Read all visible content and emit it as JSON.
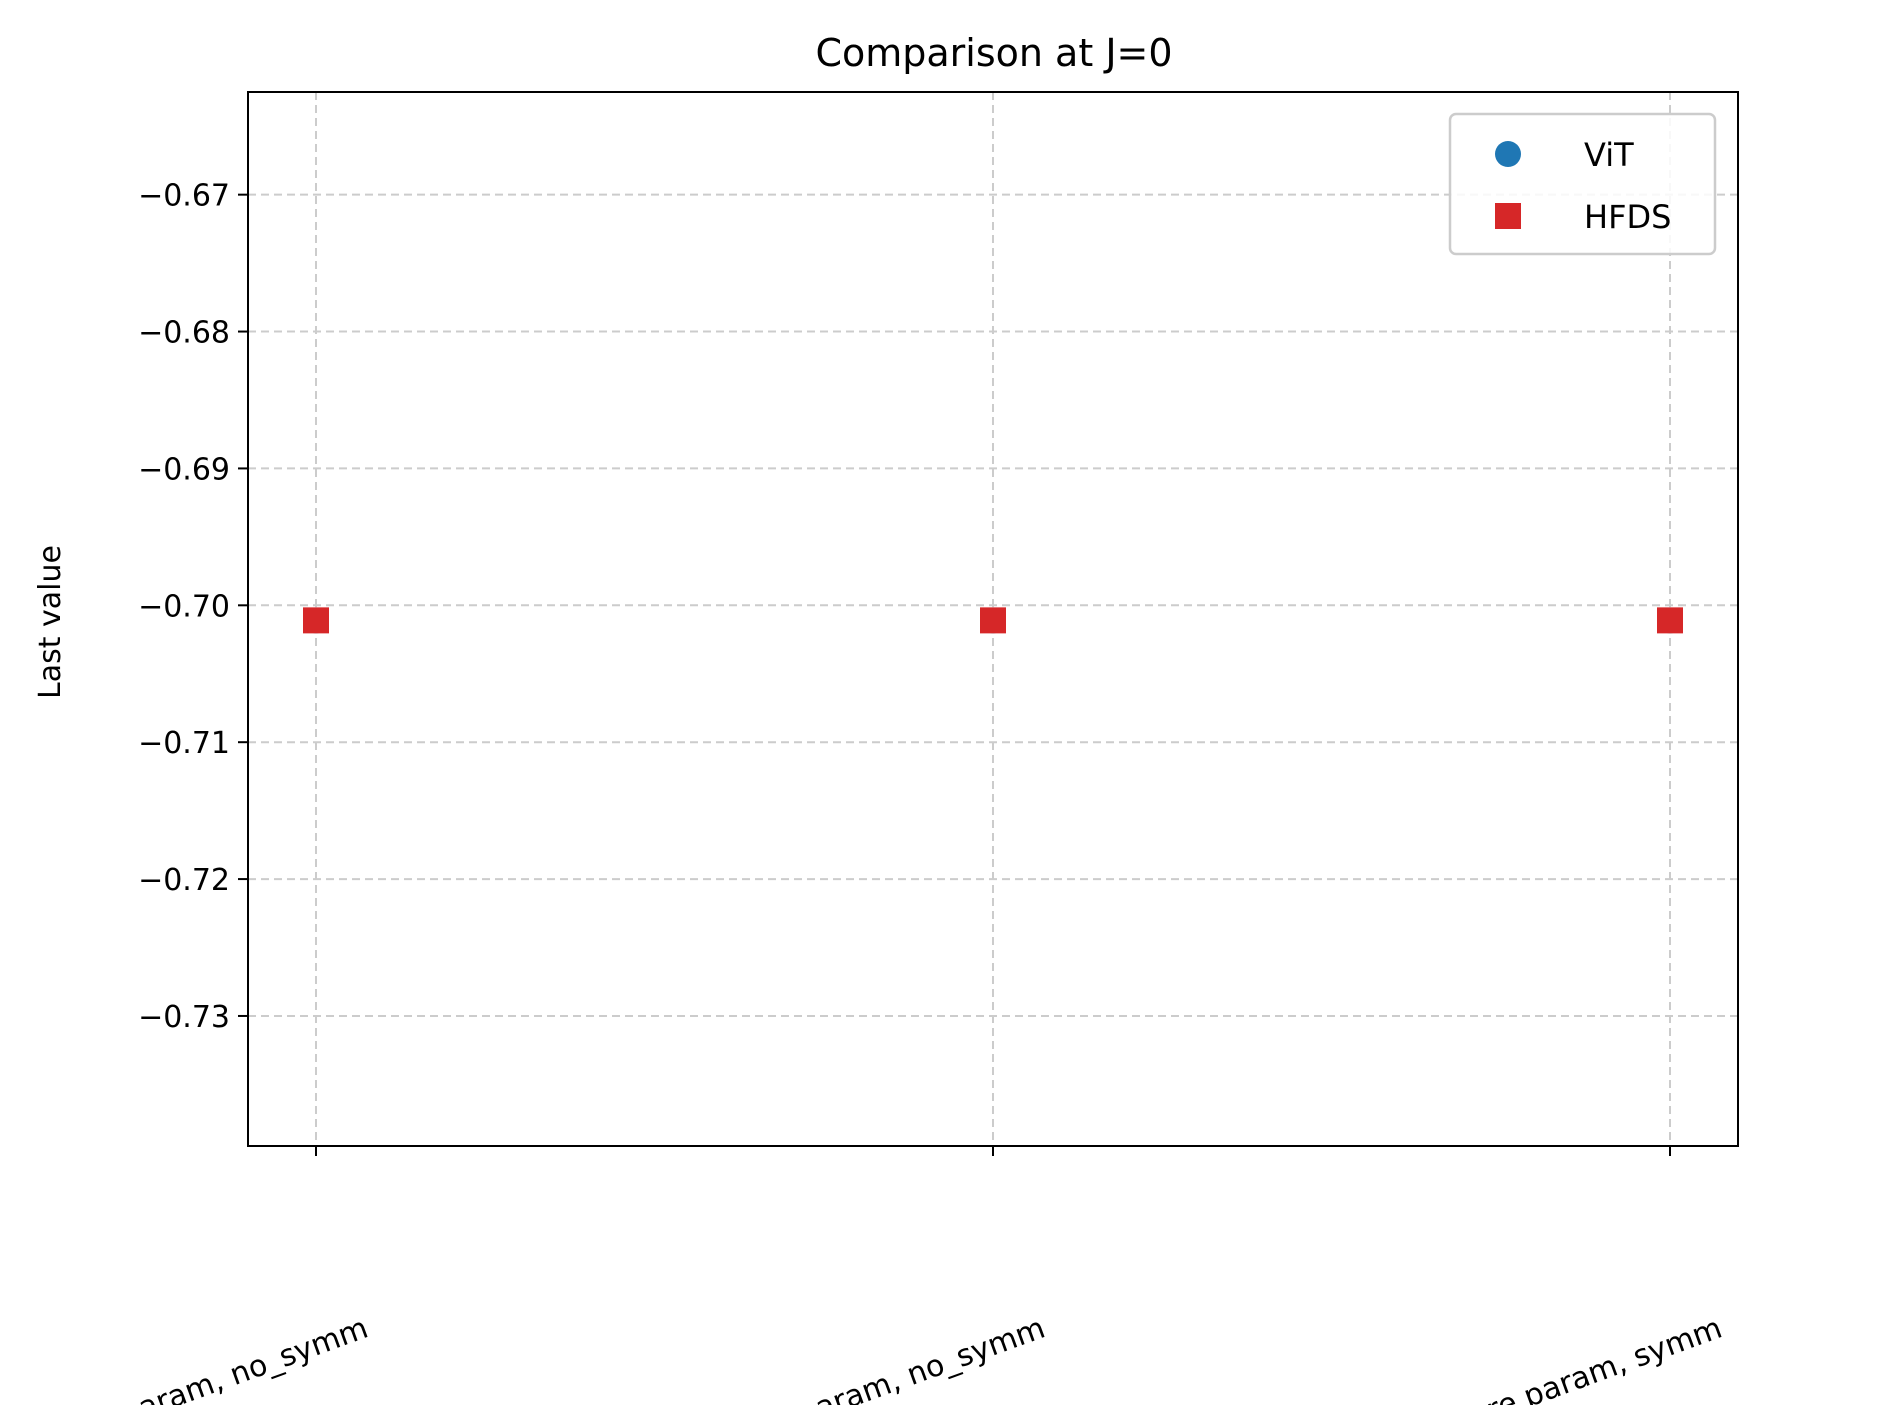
{
  "chart_data": {
    "type": "scatter",
    "title": "Comparison at J=0",
    "xlabel": "",
    "ylabel": "Last value",
    "categories": [
      "less param, no_symm",
      "more param, no_symm",
      "more param, symm"
    ],
    "ylim": [
      -0.7395,
      -0.6625
    ],
    "yticks": [
      -0.67,
      -0.68,
      -0.69,
      -0.7,
      -0.71,
      -0.72,
      -0.73
    ],
    "ytick_labels": [
      "−0.67",
      "−0.68",
      "−0.69",
      "−0.70",
      "−0.71",
      "−0.72",
      "−0.73"
    ],
    "grid": true,
    "legend_position": "top-right",
    "series": [
      {
        "name": "ViT",
        "marker": "circle",
        "color": "#1f77b4",
        "values": [
          -0.7011,
          -0.7011,
          -0.7011
        ]
      },
      {
        "name": "HFDS",
        "marker": "square",
        "color": "#d62728",
        "values": [
          -0.7011,
          -0.7011,
          -0.7011
        ]
      }
    ]
  }
}
